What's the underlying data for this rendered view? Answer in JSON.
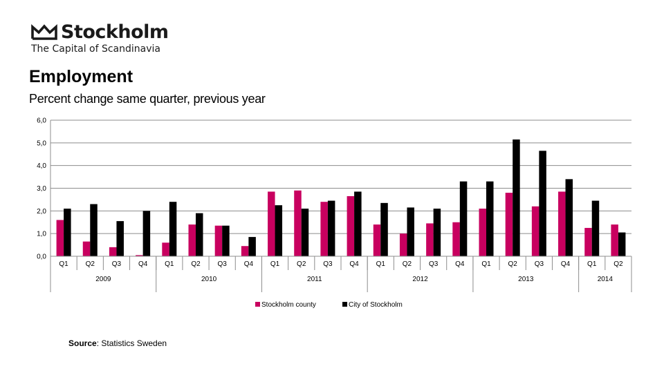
{
  "brand": {
    "name": "Stockholm",
    "tagline": "The Capital of Scandinavia"
  },
  "colors": {
    "county": "#c8005f",
    "city": "#000000",
    "grid": "#8c8c8c"
  },
  "source": {
    "label": "Source",
    "text": ": Statistics Sweden"
  },
  "chart_data": {
    "type": "bar",
    "title": "Employment",
    "subtitle": "Percent change same quarter, previous year",
    "categories": [
      "Q1",
      "Q2",
      "Q3",
      "Q4",
      "Q1",
      "Q2",
      "Q3",
      "Q4",
      "Q1",
      "Q2",
      "Q3",
      "Q4",
      "Q1",
      "Q2",
      "Q3",
      "Q4",
      "Q1",
      "Q2",
      "Q3",
      "Q4",
      "Q1",
      "Q2"
    ],
    "years": [
      {
        "label": "2009",
        "count": 4
      },
      {
        "label": "2010",
        "count": 4
      },
      {
        "label": "2011",
        "count": 4
      },
      {
        "label": "2012",
        "count": 4
      },
      {
        "label": "2013",
        "count": 4
      },
      {
        "label": "2014",
        "count": 2
      }
    ],
    "series": [
      {
        "name": "Stockholm county",
        "color": "#c8005f",
        "values": [
          1.6,
          0.65,
          0.4,
          0.05,
          0.6,
          1.4,
          1.35,
          0.45,
          2.85,
          2.9,
          2.4,
          2.65,
          1.4,
          1.0,
          1.45,
          1.5,
          2.1,
          2.8,
          2.2,
          2.85,
          1.25,
          1.4
        ]
      },
      {
        "name": "City of Stockholm",
        "color": "#000000",
        "values": [
          2.1,
          2.3,
          1.55,
          2.0,
          2.4,
          1.9,
          1.35,
          0.85,
          2.25,
          2.1,
          2.45,
          2.85,
          2.35,
          2.15,
          2.1,
          3.3,
          3.3,
          5.15,
          4.65,
          3.4,
          2.45,
          1.05
        ]
      }
    ],
    "yticks": [
      "0,0",
      "1,0",
      "2,0",
      "3,0",
      "4,0",
      "5,0",
      "6,0"
    ],
    "ylim": [
      0,
      6
    ],
    "grid": true,
    "legend": "bottom"
  }
}
